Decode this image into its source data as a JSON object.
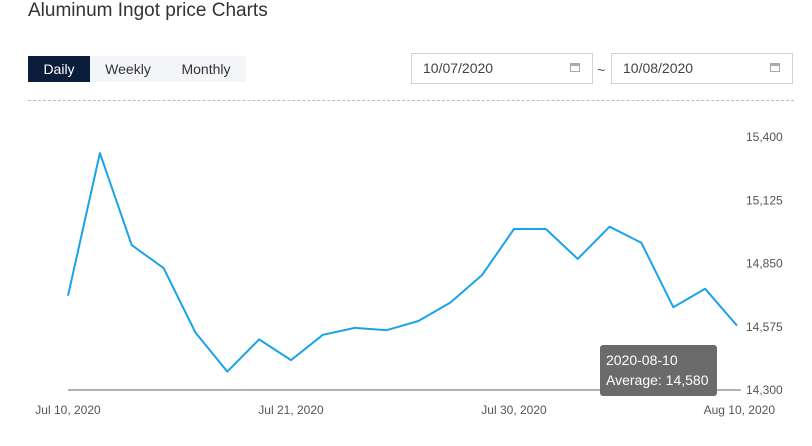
{
  "page": {
    "title": "Aluminum Ingot price Charts"
  },
  "tabs": [
    {
      "label": "Daily",
      "active": true
    },
    {
      "label": "Weekly",
      "active": false
    },
    {
      "label": "Monthly",
      "active": false
    }
  ],
  "date_range": {
    "start": "10/07/2020",
    "separator": "~",
    "end": "10/08/2020",
    "icon": "calendar-icon"
  },
  "tooltip": {
    "date": "2020-08-10",
    "average_label": "Average: 14,580"
  },
  "colors": {
    "line": "#1aa3e8",
    "active_tab": "#0a1e3c",
    "tooltip_bg": "#6b6b6b"
  },
  "chart_data": {
    "type": "line",
    "title": "",
    "xlabel": "",
    "ylabel": "",
    "x": [
      "2020-07-10",
      "2020-07-13",
      "2020-07-14",
      "2020-07-15",
      "2020-07-16",
      "2020-07-17",
      "2020-07-20",
      "2020-07-21",
      "2020-07-22",
      "2020-07-23",
      "2020-07-24",
      "2020-07-27",
      "2020-07-28",
      "2020-07-29",
      "2020-07-30",
      "2020-07-31",
      "2020-08-03",
      "2020-08-04",
      "2020-08-05",
      "2020-08-06",
      "2020-08-07",
      "2020-08-10"
    ],
    "x_tick_labels": [
      "Jul 10, 2020",
      "Jul 21, 2020",
      "Jul 30, 2020",
      "Aug 10, 2020"
    ],
    "series": [
      {
        "values": [
          14710,
          15330,
          14930,
          14830,
          14550,
          14380,
          14520,
          14430,
          14540,
          14570,
          14560,
          14600,
          14680,
          14800,
          15000,
          15000,
          14870,
          15010,
          14940,
          14660,
          14740,
          14580
        ]
      }
    ],
    "y_ticks": [
      14300,
      14575,
      14850,
      15125,
      15400
    ],
    "y_tick_labels": [
      "14,300",
      "14,575",
      "14,850",
      "15,125",
      "15,400"
    ],
    "ylim": [
      14300,
      15400
    ],
    "y_axis_position": "right",
    "grid": false,
    "legend": "none"
  }
}
